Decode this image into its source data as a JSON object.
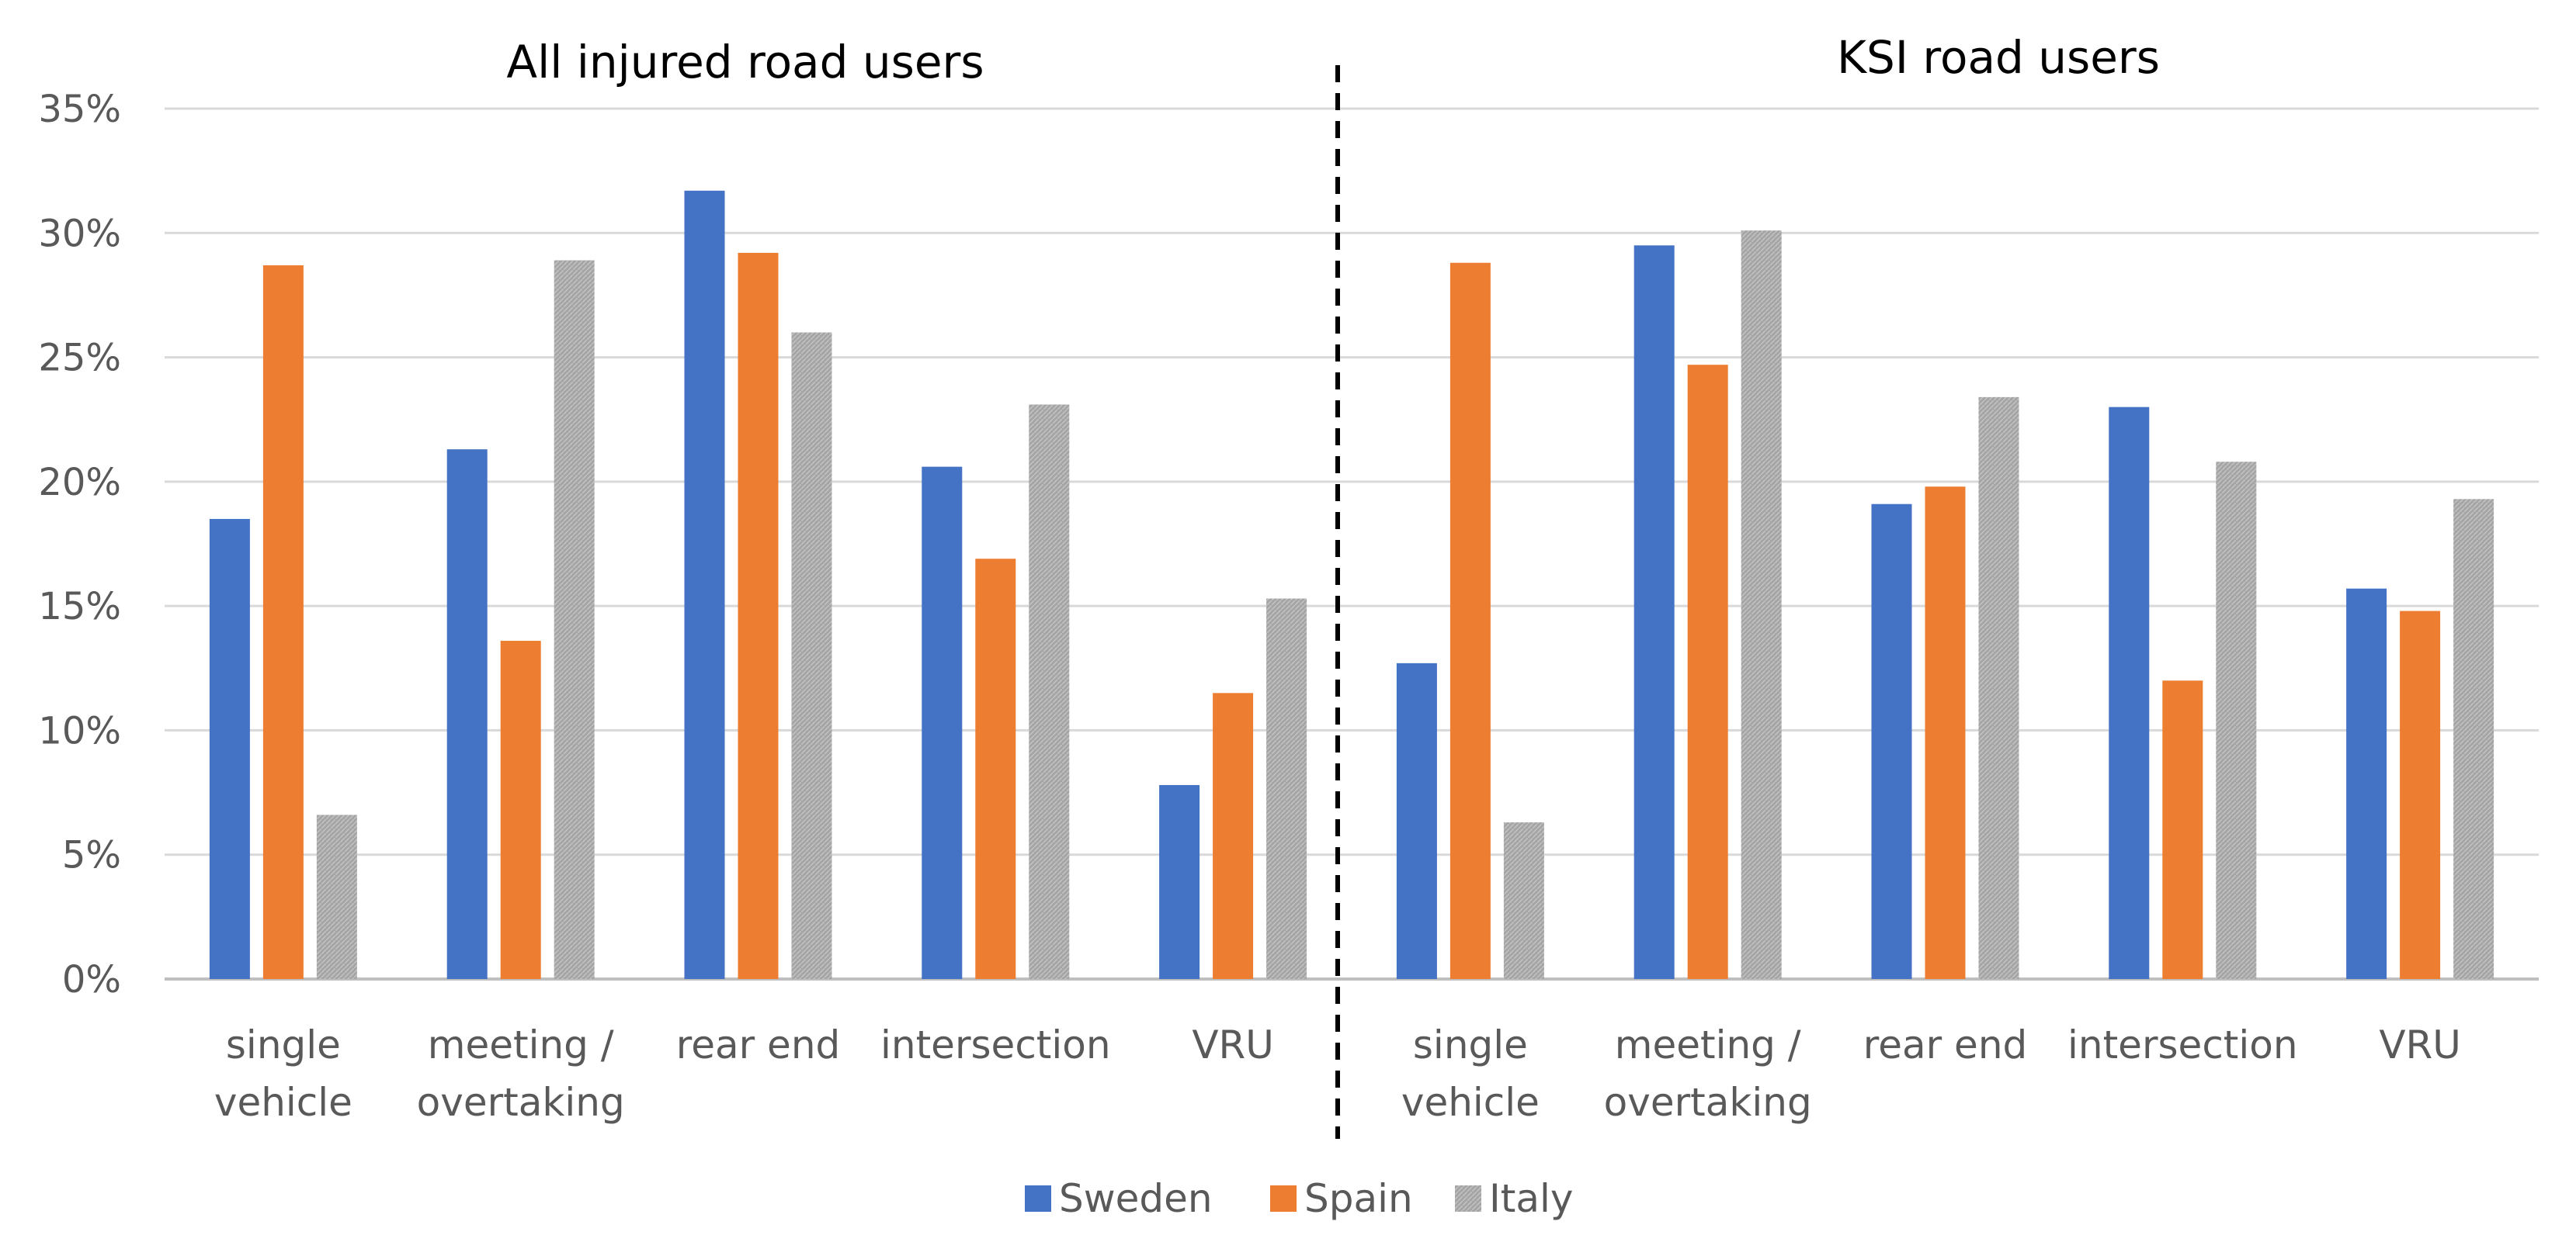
{
  "chart_data": {
    "type": "bar",
    "panels": [
      {
        "title": "All injured road users",
        "categories": [
          [
            "single",
            "vehicle"
          ],
          [
            "meeting /",
            "overtaking"
          ],
          [
            "rear end"
          ],
          [
            "intersection"
          ],
          [
            "VRU"
          ]
        ],
        "series": [
          {
            "name": "Sweden",
            "values": [
              18.5,
              21.3,
              31.7,
              20.6,
              7.8
            ]
          },
          {
            "name": "Spain",
            "values": [
              28.7,
              13.6,
              29.2,
              16.9,
              11.5
            ]
          },
          {
            "name": "Italy",
            "values": [
              6.6,
              28.9,
              26.0,
              23.1,
              15.3
            ]
          }
        ]
      },
      {
        "title": "KSI road users",
        "categories": [
          [
            "single",
            "vehicle"
          ],
          [
            "meeting /",
            "overtaking"
          ],
          [
            "rear end"
          ],
          [
            "intersection"
          ],
          [
            "VRU"
          ]
        ],
        "series": [
          {
            "name": "Sweden",
            "values": [
              12.7,
              29.5,
              19.1,
              23.0,
              15.7
            ]
          },
          {
            "name": "Spain",
            "values": [
              28.8,
              24.7,
              19.8,
              12.0,
              14.8
            ]
          },
          {
            "name": "Italy",
            "values": [
              6.3,
              30.1,
              23.4,
              20.8,
              19.3
            ]
          }
        ]
      }
    ],
    "ylim": [
      0,
      35
    ],
    "yticks": [
      "0%",
      "5%",
      "10%",
      "15%",
      "20%",
      "25%",
      "30%",
      "35%"
    ],
    "legend": [
      {
        "name": "Sweden",
        "color": "#4472C4"
      },
      {
        "name": "Spain",
        "color": "#ED7D31"
      },
      {
        "name": "Italy",
        "color": "#A5A5A5"
      }
    ],
    "legend_position": "bottom",
    "grid": true
  }
}
